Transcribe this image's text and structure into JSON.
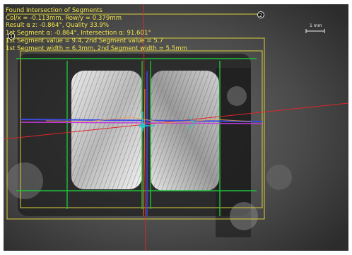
{
  "window": {
    "background": "#4b4b4b"
  },
  "overlay": {
    "color": "#f4e64a",
    "lines": [
      "Found Intersection of Segments",
      "Col/x = -0.113mm, Row/y = 0.379mm",
      "Result α z: -0.864°, Quality 33.9%",
      "1st Segment α: -0.864°, Intersection α: 91.601°",
      "1st Segment value = 9.4, 2nd Segment value = 5.7",
      "1st Segment width = 6.3mm, 2nd Segment width = 5.5mm"
    ]
  },
  "scale_bar": {
    "label": "1 mm"
  },
  "markers": {
    "start": "1",
    "end": "2"
  },
  "colors": {
    "roi": "#d9cf3a",
    "edge_green": "#1fc13a",
    "axis_red": "#e0252a",
    "seg_blue": "#3a4be0",
    "seg_magenta": "#c03ad6",
    "cursor_cyan": "#29c4c4"
  }
}
